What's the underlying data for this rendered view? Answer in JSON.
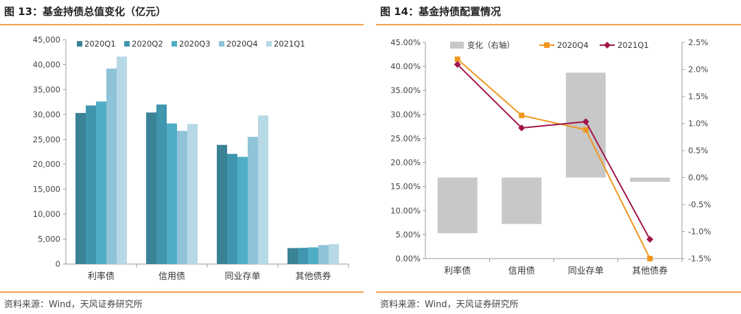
{
  "figures": [
    {
      "title": "图 13：基金持债总值变化（亿元）",
      "source": "资料来源：Wind，天风证券研究所"
    },
    {
      "title": "图 14：基金持债配置情况",
      "source": "资料来源：Wind，天风证券研究所"
    }
  ],
  "chart_data": [
    {
      "type": "bar",
      "categories": [
        "利率债",
        "信用债",
        "同业存单",
        "其他债券"
      ],
      "series": [
        {
          "name": "2020Q1",
          "color": "#3a8296",
          "values": [
            30300,
            30400,
            23900,
            3200
          ]
        },
        {
          "name": "2020Q2",
          "color": "#3f96ad",
          "values": [
            31800,
            32000,
            22100,
            3250
          ]
        },
        {
          "name": "2020Q3",
          "color": "#4faec6",
          "values": [
            32600,
            28200,
            21500,
            3350
          ]
        },
        {
          "name": "2020Q4",
          "color": "#8ec3d8",
          "values": [
            39200,
            26700,
            25500,
            3800
          ]
        },
        {
          "name": "2021Q1",
          "color": "#b7d9e6",
          "values": [
            41600,
            28100,
            29800,
            4000
          ]
        }
      ],
      "ylim": [
        0,
        45000
      ],
      "yticks": [
        "0",
        "5,000",
        "10,000",
        "15,000",
        "20,000",
        "25,000",
        "30,000",
        "35,000",
        "40,000",
        "45,000"
      ],
      "grid": false,
      "legend": "top-right"
    },
    {
      "type": "bar-line-combo",
      "categories": [
        "利率债",
        "信用债",
        "同业存单",
        "其他债券"
      ],
      "bar_series": {
        "name": "变化（右轴）",
        "color": "#c8c8c8",
        "axis": "right",
        "values": [
          -1.03,
          -0.86,
          1.94,
          -0.08
        ]
      },
      "line_series": [
        {
          "name": "2020Q4",
          "color": "#f0961e",
          "marker": "square",
          "axis": "left",
          "values": [
            41.5,
            29.8,
            26.8,
            0.0
          ]
        },
        {
          "name": "2021Q1",
          "color": "#a0154a",
          "marker": "diamond",
          "axis": "left",
          "values": [
            40.4,
            27.2,
            28.5,
            4.0
          ]
        }
      ],
      "left_axis": {
        "range": [
          0,
          45
        ],
        "ticks": [
          "0.00%",
          "5.00%",
          "10.00%",
          "15.00%",
          "20.00%",
          "25.00%",
          "30.00%",
          "35.00%",
          "40.00%",
          "45.00%"
        ]
      },
      "right_axis": {
        "range": [
          -1.5,
          2.5
        ],
        "ticks": [
          "-1.5%",
          "-1.0%",
          "-0.5%",
          "0.0%",
          "0.5%",
          "1.0%",
          "1.5%",
          "2.0%",
          "2.5%"
        ]
      },
      "grid": false,
      "legend": "top"
    }
  ]
}
